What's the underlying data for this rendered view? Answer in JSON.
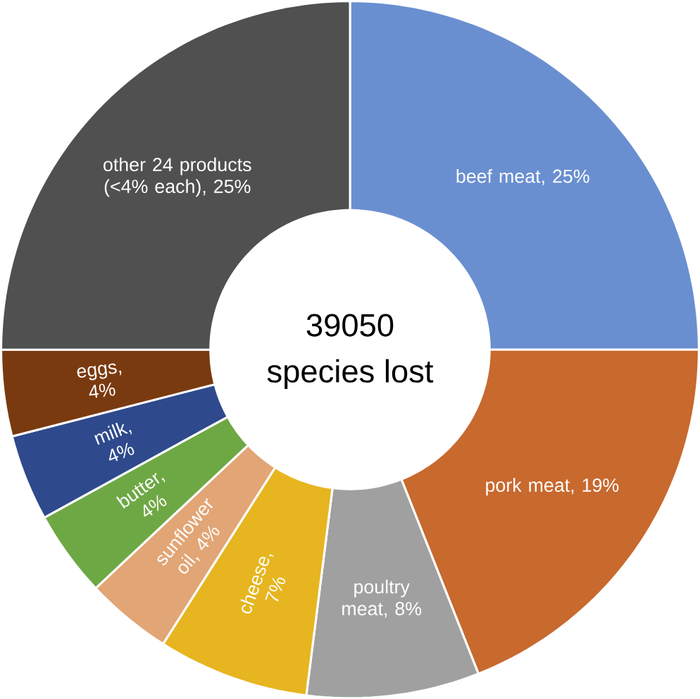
{
  "chart_data": {
    "type": "donut",
    "categories": [
      "beef meat, 25%",
      "pork meat, 19%",
      "poultry meat, 8%",
      "cheese, 7%",
      "sunflower oil, 4%",
      "butter, 4%",
      "milk, 4%",
      "eggs, 4%",
      "other 24 products (<4% each), 25%"
    ],
    "values": [
      25,
      19,
      8,
      7,
      4,
      4,
      4,
      4,
      25
    ],
    "colors": [
      "#6a8fd0",
      "#c8692e",
      "#a0a0a0",
      "#e6b520",
      "#e2a575",
      "#6ea844",
      "#2e4a8c",
      "#7a3a10",
      "#505050"
    ],
    "annotations": [
      "39050",
      "species lost"
    ]
  }
}
